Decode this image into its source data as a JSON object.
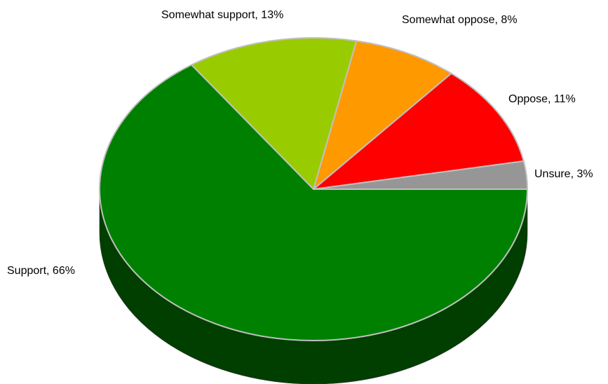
{
  "chart_data": {
    "type": "pie",
    "style": "3d",
    "title": "",
    "start_angle_note": "first slice (Unsure) begins at 3 o'clock, slices proceed counter-clockwise",
    "slices": [
      {
        "label": "Unsure",
        "value": 3,
        "display": "Unsure, 3%",
        "color": "#969696",
        "side_color": "#4a4a4a"
      },
      {
        "label": "Oppose",
        "value": 11,
        "display": "Oppose, 11%",
        "color": "#ff0000",
        "side_color": "#7a0000"
      },
      {
        "label": "Somewhat oppose",
        "value": 8,
        "display": "Somewhat oppose, 8%",
        "color": "#ff9900",
        "side_color": "#7a4a00"
      },
      {
        "label": "Somewhat support",
        "value": 13,
        "display": "Somewhat support, 13%",
        "color": "#99cc00",
        "side_color": "#4a6300"
      },
      {
        "label": "Support",
        "value": 66,
        "display": "Support, 66%",
        "color": "#008000",
        "side_color": "#003f00"
      }
    ],
    "legend": "none",
    "data_labels": "outside"
  }
}
